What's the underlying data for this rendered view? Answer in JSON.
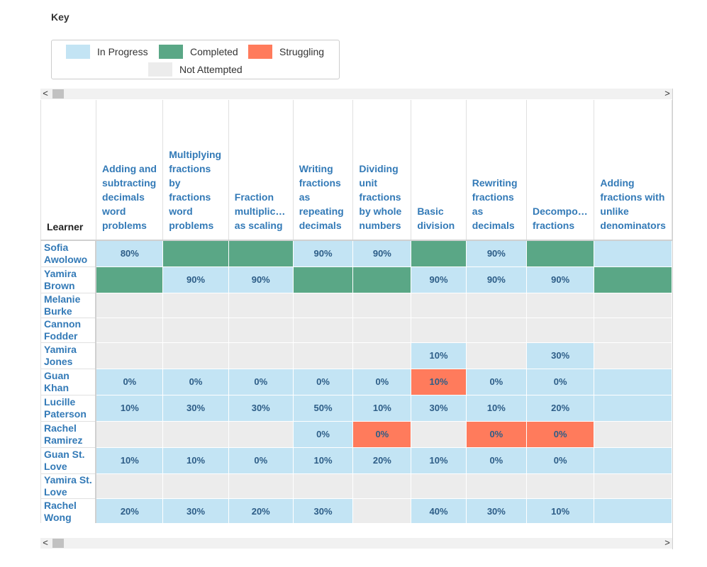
{
  "key": {
    "title": "Key",
    "items": [
      {
        "label": "In Progress",
        "color": "#c3e4f4"
      },
      {
        "label": "Completed",
        "color": "#5aa786"
      },
      {
        "label": "Struggling",
        "color": "#ff7b5c"
      },
      {
        "label": "Not Attempted",
        "color": "#ececec"
      }
    ]
  },
  "scroll": {
    "left_arrow": "<",
    "right_arrow": ">"
  },
  "table": {
    "learner_header": "Learner",
    "skills": [
      "Adding and subtracting decimals word problems",
      "Multiplying fractions by fractions word problems",
      "Fraction multiplic… as scaling",
      "Writing fractions as repeating decimals",
      "Dividing unit fractions by whole numbers",
      "Basic division",
      "Rewriting fractions as decimals",
      "Decompo… fractions",
      "Adding fractions with unlike denominators"
    ],
    "rows": [
      {
        "name": "Sofia Awolowo",
        "height": 37,
        "cells": [
          {
            "s": "inprogress",
            "v": "80%"
          },
          {
            "s": "completed",
            "v": ""
          },
          {
            "s": "completed",
            "v": ""
          },
          {
            "s": "inprogress",
            "v": "90%"
          },
          {
            "s": "inprogress",
            "v": "90%"
          },
          {
            "s": "completed",
            "v": ""
          },
          {
            "s": "inprogress",
            "v": "90%"
          },
          {
            "s": "completed",
            "v": ""
          },
          {
            "s": "inprogress",
            "v": ""
          }
        ]
      },
      {
        "name": "Yamira Brown",
        "height": 37,
        "cells": [
          {
            "s": "completed",
            "v": ""
          },
          {
            "s": "inprogress",
            "v": "90%"
          },
          {
            "s": "inprogress",
            "v": "90%"
          },
          {
            "s": "completed",
            "v": ""
          },
          {
            "s": "completed",
            "v": ""
          },
          {
            "s": "inprogress",
            "v": "90%"
          },
          {
            "s": "inprogress",
            "v": "90%"
          },
          {
            "s": "inprogress",
            "v": "90%"
          },
          {
            "s": "completed",
            "v": ""
          }
        ]
      },
      {
        "name": "Melanie Burke",
        "height": 34,
        "cells": [
          {
            "s": "notattempted",
            "v": ""
          },
          {
            "s": "notattempted",
            "v": ""
          },
          {
            "s": "notattempted",
            "v": ""
          },
          {
            "s": "notattempted",
            "v": ""
          },
          {
            "s": "notattempted",
            "v": ""
          },
          {
            "s": "notattempted",
            "v": ""
          },
          {
            "s": "notattempted",
            "v": ""
          },
          {
            "s": "notattempted",
            "v": ""
          },
          {
            "s": "notattempted",
            "v": ""
          }
        ]
      },
      {
        "name": "Cannon Fodder",
        "height": 34,
        "cells": [
          {
            "s": "notattempted",
            "v": ""
          },
          {
            "s": "notattempted",
            "v": ""
          },
          {
            "s": "notattempted",
            "v": ""
          },
          {
            "s": "notattempted",
            "v": ""
          },
          {
            "s": "notattempted",
            "v": ""
          },
          {
            "s": "notattempted",
            "v": ""
          },
          {
            "s": "notattempted",
            "v": ""
          },
          {
            "s": "notattempted",
            "v": ""
          },
          {
            "s": "notattempted",
            "v": ""
          }
        ]
      },
      {
        "name": "Yamira Jones",
        "height": 37,
        "cells": [
          {
            "s": "notattempted",
            "v": ""
          },
          {
            "s": "notattempted",
            "v": ""
          },
          {
            "s": "notattempted",
            "v": ""
          },
          {
            "s": "notattempted",
            "v": ""
          },
          {
            "s": "notattempted",
            "v": ""
          },
          {
            "s": "inprogress",
            "v": "10%"
          },
          {
            "s": "notattempted",
            "v": ""
          },
          {
            "s": "inprogress",
            "v": "30%"
          },
          {
            "s": "notattempted",
            "v": ""
          }
        ]
      },
      {
        "name": "Guan Khan",
        "height": 37,
        "cells": [
          {
            "s": "inprogress",
            "v": "0%"
          },
          {
            "s": "inprogress",
            "v": "0%"
          },
          {
            "s": "inprogress",
            "v": "0%"
          },
          {
            "s": "inprogress",
            "v": "0%"
          },
          {
            "s": "inprogress",
            "v": "0%"
          },
          {
            "s": "struggling",
            "v": "10%"
          },
          {
            "s": "inprogress",
            "v": "0%"
          },
          {
            "s": "inprogress",
            "v": "0%"
          },
          {
            "s": "inprogress",
            "v": ""
          }
        ]
      },
      {
        "name": "Lucille Paterson",
        "height": 37,
        "cells": [
          {
            "s": "inprogress",
            "v": "10%"
          },
          {
            "s": "inprogress",
            "v": "30%"
          },
          {
            "s": "inprogress",
            "v": "30%"
          },
          {
            "s": "inprogress",
            "v": "50%"
          },
          {
            "s": "inprogress",
            "v": "10%"
          },
          {
            "s": "inprogress",
            "v": "30%"
          },
          {
            "s": "inprogress",
            "v": "10%"
          },
          {
            "s": "inprogress",
            "v": "20%"
          },
          {
            "s": "inprogress",
            "v": ""
          }
        ]
      },
      {
        "name": "Rachel Ramirez",
        "height": 37,
        "cells": [
          {
            "s": "notattempted",
            "v": ""
          },
          {
            "s": "notattempted",
            "v": ""
          },
          {
            "s": "notattempted",
            "v": ""
          },
          {
            "s": "inprogress",
            "v": "0%"
          },
          {
            "s": "struggling",
            "v": "0%"
          },
          {
            "s": "notattempted",
            "v": ""
          },
          {
            "s": "struggling",
            "v": "0%"
          },
          {
            "s": "struggling",
            "v": "0%"
          },
          {
            "s": "notattempted",
            "v": ""
          }
        ]
      },
      {
        "name": "Guan St. Love",
        "height": 37,
        "cells": [
          {
            "s": "inprogress",
            "v": "10%"
          },
          {
            "s": "inprogress",
            "v": "10%"
          },
          {
            "s": "inprogress",
            "v": "0%"
          },
          {
            "s": "inprogress",
            "v": "10%"
          },
          {
            "s": "inprogress",
            "v": "20%"
          },
          {
            "s": "inprogress",
            "v": "10%"
          },
          {
            "s": "inprogress",
            "v": "0%"
          },
          {
            "s": "inprogress",
            "v": "0%"
          },
          {
            "s": "inprogress",
            "v": ""
          }
        ]
      },
      {
        "name": "Yamira St. Love",
        "height": 34,
        "cells": [
          {
            "s": "notattempted",
            "v": ""
          },
          {
            "s": "notattempted",
            "v": ""
          },
          {
            "s": "notattempted",
            "v": ""
          },
          {
            "s": "notattempted",
            "v": ""
          },
          {
            "s": "notattempted",
            "v": ""
          },
          {
            "s": "notattempted",
            "v": ""
          },
          {
            "s": "notattempted",
            "v": ""
          },
          {
            "s": "notattempted",
            "v": ""
          },
          {
            "s": "notattempted",
            "v": ""
          }
        ]
      },
      {
        "name": "Rachel Wong",
        "height": 37,
        "cells": [
          {
            "s": "inprogress",
            "v": "20%"
          },
          {
            "s": "inprogress",
            "v": "30%"
          },
          {
            "s": "inprogress",
            "v": "20%"
          },
          {
            "s": "inprogress",
            "v": "30%"
          },
          {
            "s": "notattempted",
            "v": ""
          },
          {
            "s": "inprogress",
            "v": "40%"
          },
          {
            "s": "inprogress",
            "v": "30%"
          },
          {
            "s": "inprogress",
            "v": "10%"
          },
          {
            "s": "inprogress",
            "v": ""
          }
        ]
      }
    ]
  }
}
